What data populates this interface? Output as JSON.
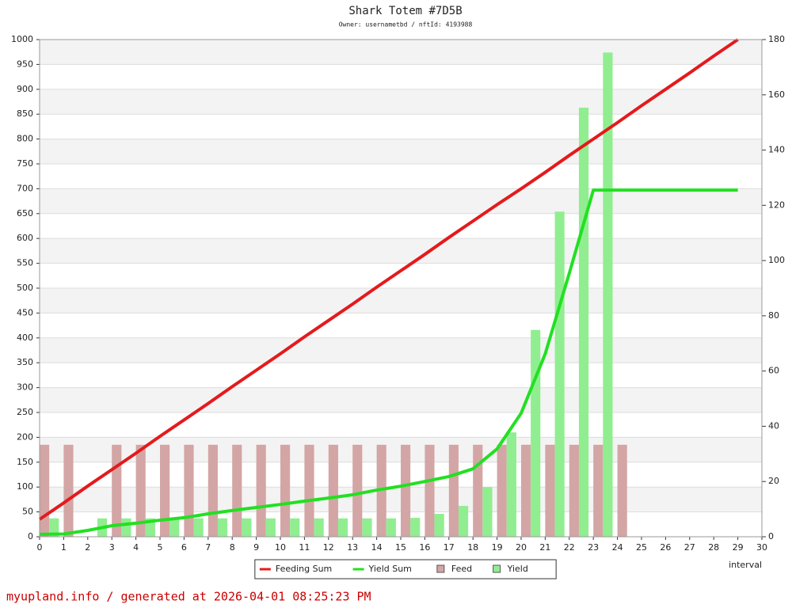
{
  "chart_data": {
    "type": "combo",
    "title": "Shark Totem #7D5B",
    "subtitle": "Owner: usernametbd / nftId: 4193988",
    "x_label": "interval",
    "footer": "myupland.info / generated at 2026-04-01 08:25:23 PM",
    "xlim": [
      0,
      30
    ],
    "xticks": [
      0,
      1,
      2,
      3,
      4,
      5,
      6,
      7,
      8,
      9,
      10,
      11,
      12,
      13,
      14,
      15,
      16,
      17,
      18,
      19,
      20,
      21,
      22,
      23,
      24,
      25,
      26,
      27,
      28,
      29,
      30
    ],
    "ylim": [
      0,
      1000
    ],
    "yticks": [
      0,
      50,
      100,
      150,
      200,
      250,
      300,
      350,
      400,
      450,
      500,
      550,
      600,
      650,
      700,
      750,
      800,
      850,
      900,
      950,
      1000
    ],
    "y2lim": [
      0,
      180
    ],
    "y2ticks": [
      0,
      20,
      40,
      60,
      80,
      100,
      120,
      140,
      160,
      180
    ],
    "grid": true,
    "legend": "bottom",
    "series": [
      {
        "name": "Feeding Sum",
        "type": "line",
        "color": "#e41a1c",
        "x": [
          0,
          1,
          2,
          3,
          4,
          5,
          6,
          7,
          8,
          9,
          10,
          11,
          12,
          13,
          14,
          15,
          16,
          17,
          18,
          19,
          20,
          21,
          22,
          23,
          24,
          25,
          26,
          27,
          28,
          29
        ],
        "values": [
          35,
          68,
          102,
          135,
          168,
          202,
          235,
          268,
          302,
          335,
          368,
          402,
          435,
          468,
          502,
          535,
          568,
          602,
          635,
          668,
          700,
          733,
          767,
          800,
          833,
          867,
          900,
          933,
          967,
          1000
        ]
      },
      {
        "name": "Yield Sum",
        "type": "line",
        "axis": "y2",
        "color": "#22e022",
        "x": [
          0,
          1,
          2,
          3,
          4,
          5,
          6,
          7,
          8,
          9,
          10,
          11,
          12,
          13,
          14,
          15,
          16,
          17,
          18,
          19,
          20,
          21,
          22,
          23,
          24,
          25,
          26,
          27,
          28,
          29
        ],
        "values": [
          0.9,
          1,
          2.3,
          4,
          4.9,
          6,
          6.9,
          8.3,
          9.5,
          10.6,
          11.7,
          12.9,
          14,
          15.2,
          16.9,
          18.3,
          20,
          21.8,
          24.6,
          31.8,
          44.7,
          66.2,
          95.4,
          125.5,
          125.5,
          125.5,
          125.5,
          125.5,
          125.5,
          125.5
        ]
      },
      {
        "name": "Feed",
        "type": "bar",
        "color": "#d4a5a5",
        "x": [
          0,
          1,
          2,
          3,
          4,
          5,
          6,
          7,
          8,
          9,
          10,
          11,
          12,
          13,
          14,
          15,
          16,
          17,
          18,
          19,
          20,
          21,
          22,
          23,
          24
        ],
        "values": [
          185,
          185,
          0,
          185,
          185,
          185,
          185,
          185,
          185,
          185,
          185,
          185,
          185,
          185,
          185,
          185,
          185,
          185,
          185,
          185,
          185,
          185,
          185,
          185,
          185
        ]
      },
      {
        "name": "Yield",
        "type": "bar",
        "color": "#90ee90",
        "x": [
          0,
          1,
          2,
          3,
          4,
          5,
          6,
          7,
          8,
          9,
          10,
          11,
          12,
          13,
          14,
          15,
          16,
          17,
          18,
          19,
          20,
          21,
          22,
          23,
          24
        ],
        "values": [
          37,
          0,
          37,
          37,
          37,
          37,
          37,
          37,
          37,
          37,
          37,
          37,
          37,
          37,
          37,
          38,
          46,
          62,
          100,
          210,
          416,
          654,
          863,
          974,
          0
        ]
      }
    ]
  }
}
